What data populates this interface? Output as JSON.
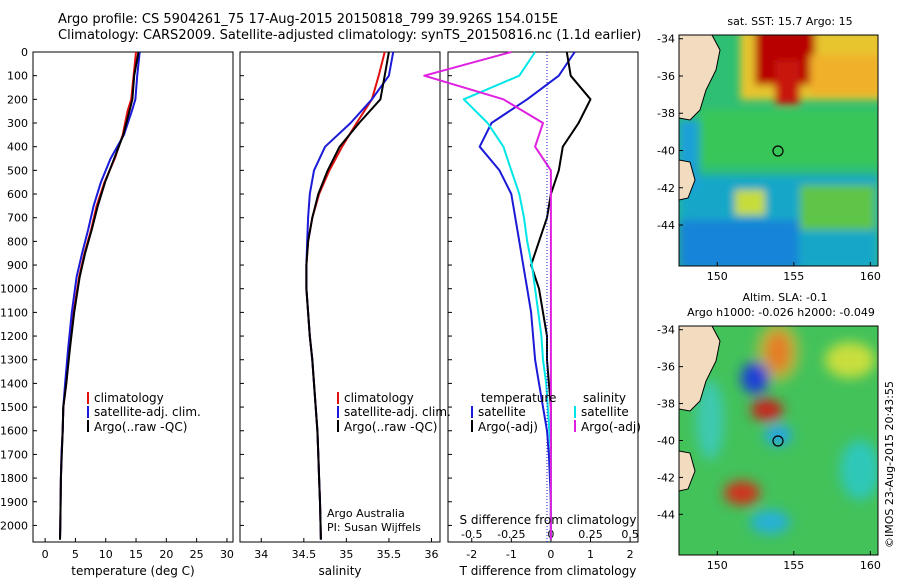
{
  "title": {
    "line1": "Argo profile: CS 5904261_75 17-Aug-2015 20150818_799 39.926S 154.015E",
    "line2": "Climatology: CARS2009. Satellite-adjusted climatology: synTS_20150816.nc (1.1d earlier)"
  },
  "colors": {
    "climatology": "#e01010",
    "satellite": "#1a1ad8",
    "argo": "#000000",
    "satellite_diff": "#00e6e6",
    "argo_diff": "#e020e0"
  },
  "chart_data": [
    {
      "type": "line",
      "panel": "temperature",
      "xlabel": "temperature (deg C)",
      "ylabel": "",
      "xlim": [
        -2,
        31
      ],
      "ylim": [
        2070,
        0
      ],
      "xticks": [
        "0",
        "5",
        "10",
        "15",
        "20",
        "25",
        "30"
      ],
      "yticks": [
        "0",
        "100",
        "200",
        "300",
        "400",
        "500",
        "600",
        "700",
        "800",
        "900",
        "1000",
        "1100",
        "1200",
        "1300",
        "1400",
        "1500",
        "1600",
        "1700",
        "1800",
        "1900",
        "2000"
      ],
      "legend": [
        "climatology",
        "satellite-adj. clim.",
        "Argo(..raw -QC)"
      ],
      "legend_position": "lower-middle",
      "series": [
        {
          "name": "climatology",
          "x": [
            15.0,
            14.6,
            14.2,
            13.6,
            12.8,
            11.5,
            9.8,
            8.5,
            7.6,
            6.5,
            5.6,
            4.7,
            4.0,
            3.5,
            3.0,
            2.9,
            2.7,
            2.6,
            2.55,
            2.5,
            2.45
          ],
          "depth": [
            0,
            100,
            200,
            250,
            350,
            450,
            550,
            650,
            750,
            850,
            950,
            1100,
            1250,
            1400,
            1500,
            1600,
            1700,
            1800,
            1900,
            2000,
            2060
          ]
        },
        {
          "name": "satellite-adj. clim.",
          "x": [
            15.6,
            15.2,
            14.9,
            14.3,
            13.0,
            10.8,
            9.2,
            8.0,
            7.1,
            6.1,
            5.2,
            4.4,
            3.8,
            3.3,
            3.0,
            2.9,
            2.7,
            2.6,
            2.55,
            2.5,
            2.45
          ],
          "depth": [
            0,
            100,
            200,
            250,
            350,
            450,
            550,
            650,
            750,
            850,
            950,
            1100,
            1250,
            1400,
            1500,
            1600,
            1700,
            1800,
            1900,
            2000,
            2060
          ]
        },
        {
          "name": "Argo(..raw -QC)",
          "x": [
            15.4,
            14.7,
            14.4,
            13.9,
            12.9,
            11.4,
            9.9,
            8.7,
            7.7,
            6.6,
            5.7,
            4.8,
            4.1,
            3.5,
            3.0,
            2.9,
            2.75,
            2.6,
            2.55,
            2.5,
            2.45
          ],
          "depth": [
            0,
            100,
            200,
            250,
            350,
            450,
            550,
            650,
            750,
            850,
            950,
            1100,
            1250,
            1400,
            1500,
            1600,
            1700,
            1800,
            1900,
            2000,
            2060
          ]
        }
      ]
    },
    {
      "type": "line",
      "panel": "salinity",
      "xlabel": "salinity",
      "xlim": [
        33.75,
        36.1
      ],
      "ylim": [
        2070,
        0
      ],
      "xticks": [
        "34",
        "34.5",
        "35",
        "35.5",
        "36"
      ],
      "legend": [
        "climatology",
        "satellite-adj. clim.",
        "Argo(..raw -QC)"
      ],
      "legend_position": "lower-middle",
      "annotation": [
        "Argo Australia",
        "PI: Susan Wijffels"
      ],
      "series": [
        {
          "name": "climatology",
          "x": [
            35.45,
            35.38,
            35.3,
            35.12,
            34.95,
            34.8,
            34.68,
            34.6,
            34.55,
            34.53,
            34.53,
            34.55,
            34.57,
            34.6,
            34.62,
            34.64,
            34.66,
            34.67,
            34.68,
            34.69,
            34.7
          ],
          "depth": [
            0,
            100,
            200,
            300,
            400,
            500,
            600,
            700,
            800,
            900,
            1000,
            1100,
            1200,
            1300,
            1400,
            1500,
            1600,
            1700,
            1800,
            1900,
            2060
          ]
        },
        {
          "name": "satellite-adj. clim.",
          "x": [
            35.55,
            35.5,
            35.3,
            35.05,
            34.75,
            34.62,
            34.57,
            34.55,
            34.54,
            34.53,
            34.53,
            34.55,
            34.57,
            34.6,
            34.62,
            34.64,
            34.66,
            34.67,
            34.68,
            34.69,
            34.7
          ],
          "depth": [
            0,
            100,
            200,
            300,
            400,
            500,
            600,
            700,
            800,
            900,
            1000,
            1100,
            1200,
            1300,
            1400,
            1500,
            1600,
            1700,
            1800,
            1900,
            2060
          ]
        },
        {
          "name": "Argo(..raw -QC)",
          "x": [
            35.5,
            35.45,
            35.4,
            35.15,
            34.92,
            34.78,
            34.67,
            34.6,
            34.55,
            34.53,
            34.53,
            34.55,
            34.57,
            34.6,
            34.62,
            34.64,
            34.66,
            34.67,
            34.68,
            34.69,
            34.7
          ],
          "depth": [
            0,
            100,
            200,
            300,
            400,
            500,
            600,
            700,
            800,
            900,
            1000,
            1100,
            1200,
            1300,
            1400,
            1500,
            1600,
            1700,
            1800,
            1900,
            2060
          ]
        }
      ]
    },
    {
      "type": "line",
      "panel": "difference",
      "xlabel": "T difference from climatology",
      "xlabel_top": "S difference from climatology",
      "xlim": [
        -2.6,
        2.2
      ],
      "ylim": [
        2070,
        0
      ],
      "xticks": [
        "-2",
        "-1",
        "0",
        "1",
        "2"
      ],
      "sticks": [
        "-0.5",
        "-0.25",
        "0",
        "0.25",
        "0.5"
      ],
      "legend_headers": [
        "temperature",
        "salinity"
      ],
      "legend": [
        "satellite",
        "Argo(-adj)",
        "satellite",
        "Argo(-adj)"
      ],
      "series": [
        {
          "name": "temperature satellite",
          "x": [
            0.6,
            0.2,
            -0.6,
            -1.5,
            -1.8,
            -1.3,
            -1.0,
            -0.9,
            -0.8,
            -0.7,
            -0.6,
            -0.5,
            -0.45,
            -0.4,
            -0.3,
            -0.2,
            -0.1,
            -0.05,
            0.0,
            0.0
          ],
          "depth": [
            0,
            100,
            200,
            300,
            400,
            500,
            600,
            700,
            800,
            900,
            1000,
            1100,
            1200,
            1300,
            1400,
            1500,
            1600,
            1700,
            1900,
            2060
          ]
        },
        {
          "name": "temperature Argo(-adj)",
          "x": [
            0.4,
            0.5,
            1.0,
            0.7,
            0.3,
            0.2,
            0.0,
            -0.1,
            -0.3,
            -0.5,
            -0.3,
            -0.2,
            -0.1,
            -0.1,
            -0.05,
            0.0,
            0.0,
            0.0,
            0.0,
            0.0
          ],
          "depth": [
            0,
            100,
            200,
            300,
            400,
            500,
            600,
            700,
            800,
            900,
            1000,
            1100,
            1200,
            1300,
            1400,
            1500,
            1600,
            1700,
            1900,
            2060
          ]
        },
        {
          "name": "salinity satellite",
          "x": [
            -0.1,
            -0.2,
            -0.55,
            -0.4,
            -0.3,
            -0.25,
            -0.2,
            -0.17,
            -0.15,
            -0.12,
            -0.1,
            -0.08,
            -0.06,
            -0.05,
            -0.03,
            -0.02,
            -0.01,
            0.0,
            0.0
          ],
          "depth": [
            0,
            100,
            200,
            300,
            400,
            500,
            600,
            700,
            800,
            900,
            1000,
            1100,
            1200,
            1300,
            1400,
            1500,
            1600,
            1700,
            2060
          ]
        },
        {
          "name": "salinity Argo(-adj)",
          "x": [
            -0.25,
            -0.8,
            -0.3,
            -0.05,
            -0.1,
            0.0,
            0.0,
            0.0,
            0.0,
            0.0,
            0.0
          ],
          "depth": [
            0,
            100,
            200,
            300,
            400,
            500,
            700,
            1000,
            1400,
            1800,
            2060
          ]
        }
      ]
    },
    {
      "type": "heatmap",
      "panel": "sst_map",
      "title": "sat. SST: 15.7 Argo: 15",
      "xticks": [
        "150",
        "155",
        "160"
      ],
      "yticks": [
        "-34",
        "-36",
        "-38",
        "-40",
        "-42",
        "-44"
      ],
      "xlim": [
        147.5,
        160.5
      ],
      "ylim": [
        -46.2,
        -33.8
      ],
      "argo_position": {
        "lon": 154.0,
        "lat": -39.9
      }
    },
    {
      "type": "heatmap",
      "panel": "sla_map",
      "title": "Altim. SLA: -0.1",
      "subtitle": "Argo h1000: -0.026 h2000: -0.049",
      "xticks": [
        "150",
        "155",
        "160"
      ],
      "yticks": [
        "-34",
        "-36",
        "-38",
        "-40",
        "-42",
        "-44"
      ],
      "xlim": [
        147.5,
        160.5
      ],
      "ylim": [
        -46.2,
        -33.8
      ],
      "argo_position": {
        "lon": 154.0,
        "lat": -39.9
      }
    }
  ],
  "credit": "©IMOS 23-Aug-2015 20:43:55"
}
